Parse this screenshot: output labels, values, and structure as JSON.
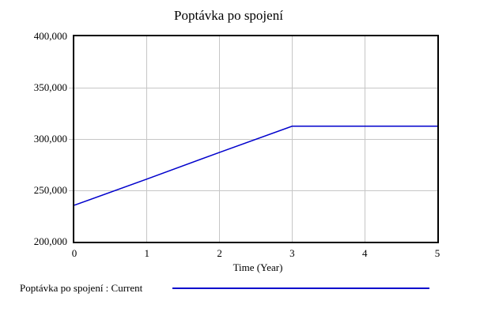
{
  "window": {
    "title": "Poptávka po spojení"
  },
  "colors": {
    "line": "#0000cc",
    "grid": "#c6c6c6",
    "frame": "#000000",
    "background": "#ffffff",
    "text": "#000000"
  },
  "legend": {
    "label": "Poptávka po spojení : Current"
  },
  "chart_data": {
    "type": "line",
    "title": "Poptávka po spojení",
    "xlabel": "Time (Year)",
    "ylabel": "",
    "xlim": [
      0,
      5
    ],
    "ylim": [
      200000,
      400000
    ],
    "x_ticks": [
      0,
      1,
      2,
      3,
      4,
      5
    ],
    "x_tick_labels": [
      "0",
      "1",
      "2",
      "3",
      "4",
      "5"
    ],
    "y_ticks": [
      200000,
      250000,
      300000,
      350000,
      400000
    ],
    "y_tick_labels": [
      "200,000",
      "250,000",
      "300,000",
      "350,000",
      "400,000"
    ],
    "grid": true,
    "legend_position": "bottom-left",
    "series": [
      {
        "name": "Poptávka po spojení : Current",
        "color": "#0000cc",
        "x": [
          0,
          1,
          2,
          3,
          4,
          5
        ],
        "values": [
          235500,
          261000,
          287000,
          312500,
          312500,
          312500
        ]
      }
    ]
  }
}
